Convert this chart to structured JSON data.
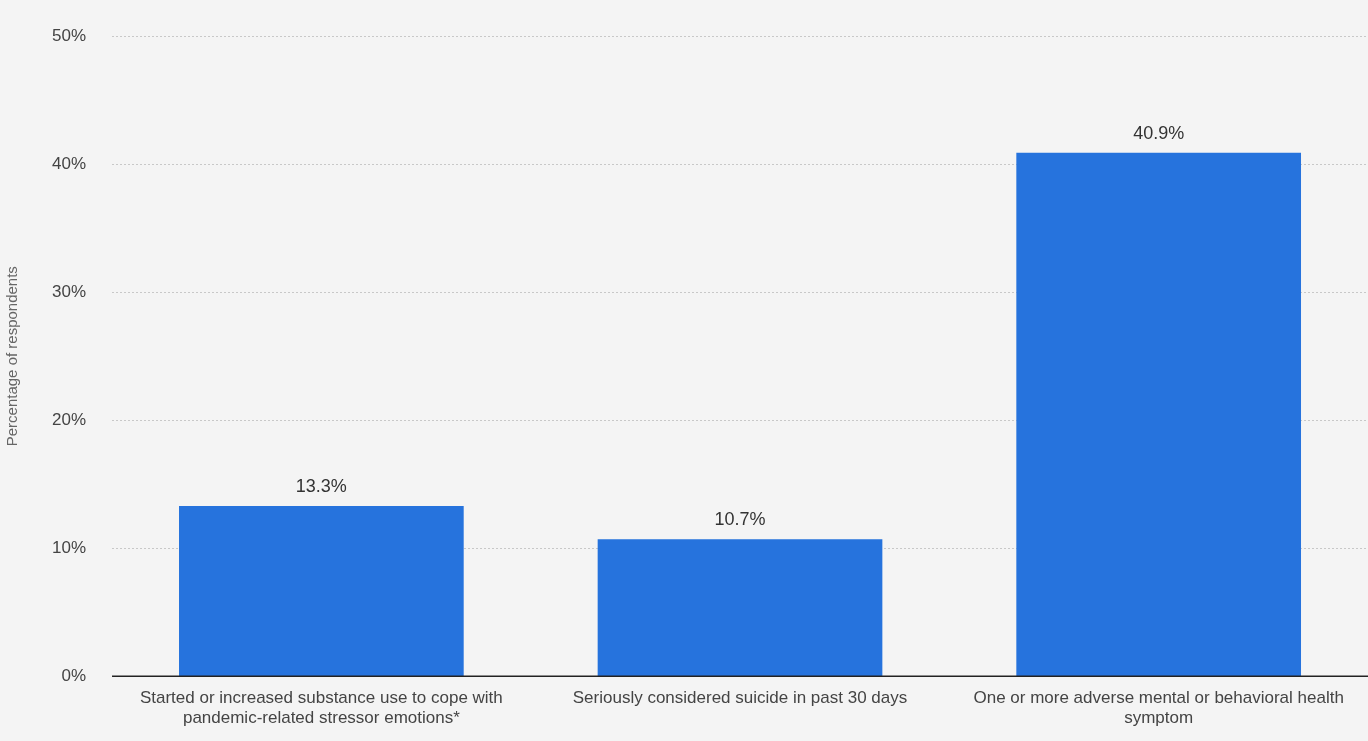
{
  "chart_data": {
    "type": "bar",
    "ylabel": "Percentage of respondents",
    "categories": [
      "Started or increased substance use to cope with pandemic-related stressor emotions*",
      "Seriously considered suicide in past 30 days",
      "One or more adverse mental or behavioral health symptom"
    ],
    "values": [
      13.3,
      10.7,
      40.9
    ],
    "color": "#2673dd",
    "value_labels": [
      "13.3%",
      "10.7%",
      "40.9%"
    ],
    "ylim": [
      0,
      50
    ],
    "yticks": [
      {
        "value": 0,
        "label": "0%"
      },
      {
        "value": 10,
        "label": "10%"
      },
      {
        "value": 20,
        "label": "20%"
      },
      {
        "value": 30,
        "label": "30%"
      },
      {
        "value": 40,
        "label": "40%"
      },
      {
        "value": 50,
        "label": "50%"
      }
    ],
    "grid": "y",
    "legend": false
  }
}
